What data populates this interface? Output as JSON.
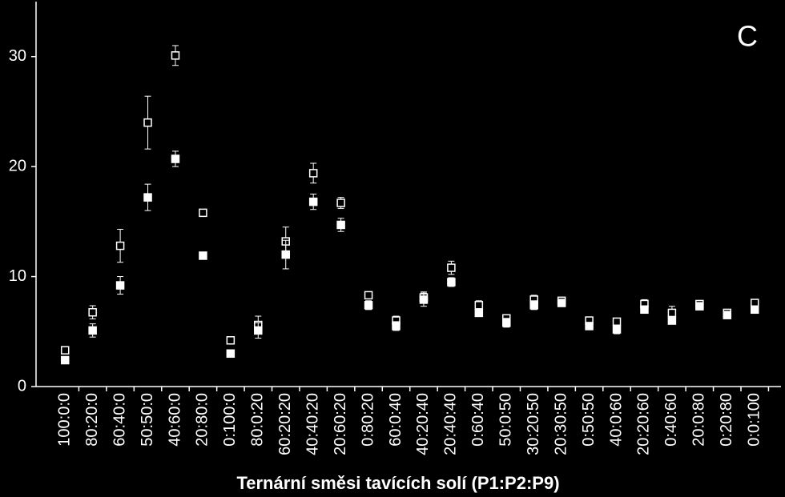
{
  "chart_data": {
    "type": "scatter",
    "annotation": "C",
    "xlabel": "Ternární směsi tavících solí (P1:P2:P9)",
    "categories": [
      "100:0:0",
      "80:20:0",
      "60:40:0",
      "50:50:0",
      "40:60:0",
      "20:80:0",
      "0:100:0",
      "80:0:20",
      "60:20:20",
      "40:40:20",
      "20:60:20",
      "0:80:20",
      "60:0:40",
      "40:20:40",
      "20:40:40",
      "0:60:40",
      "50:0:50",
      "30:20:50",
      "20:30:50",
      "0:50:50",
      "40:0:60",
      "20:20:60",
      "0:40:60",
      "20:0:80",
      "0:20:80",
      "0:0:100"
    ],
    "series": [
      {
        "marker": "open-square",
        "color": "#ffffff",
        "values": [
          3.3,
          6.75,
          12.8,
          24.0,
          30.1,
          15.8,
          4.2,
          5.6,
          13.2,
          19.4,
          16.7,
          8.3,
          6.0,
          8.1,
          10.8,
          7.4,
          6.2,
          7.9,
          7.8,
          6.0,
          5.9,
          7.5,
          6.7,
          7.5,
          6.7,
          7.6
        ],
        "errors": [
          0.3,
          0.6,
          1.5,
          2.4,
          0.9,
          0.3,
          0.3,
          0.8,
          1.3,
          0.9,
          0.5,
          0.3,
          0.4,
          0.5,
          0.6,
          0.4,
          0.3,
          0.4,
          0.3,
          0.3,
          0.3,
          0.4,
          0.6,
          0.3,
          0.3,
          0.3
        ]
      },
      {
        "marker": "filled-square",
        "color": "#ffffff",
        "values": [
          2.4,
          5.1,
          9.2,
          17.2,
          20.7,
          11.9,
          3.0,
          5.1,
          12.0,
          16.8,
          14.7,
          7.4,
          5.5,
          7.9,
          9.5,
          6.7,
          5.8,
          7.4,
          7.6,
          5.5,
          5.2,
          7.0,
          6.0,
          7.3,
          6.5,
          7.0
        ],
        "errors": [
          0.2,
          0.6,
          0.8,
          1.2,
          0.7,
          0.3,
          0.2,
          0.7,
          1.3,
          0.7,
          0.6,
          0.4,
          0.4,
          0.6,
          0.4,
          0.3,
          0.4,
          0.4,
          0.3,
          0.3,
          0.4,
          0.3,
          0.3,
          0.3,
          0.3,
          0.3
        ]
      }
    ],
    "ylim": [
      0,
      35
    ],
    "yticks": [
      0,
      10,
      20,
      30
    ]
  }
}
